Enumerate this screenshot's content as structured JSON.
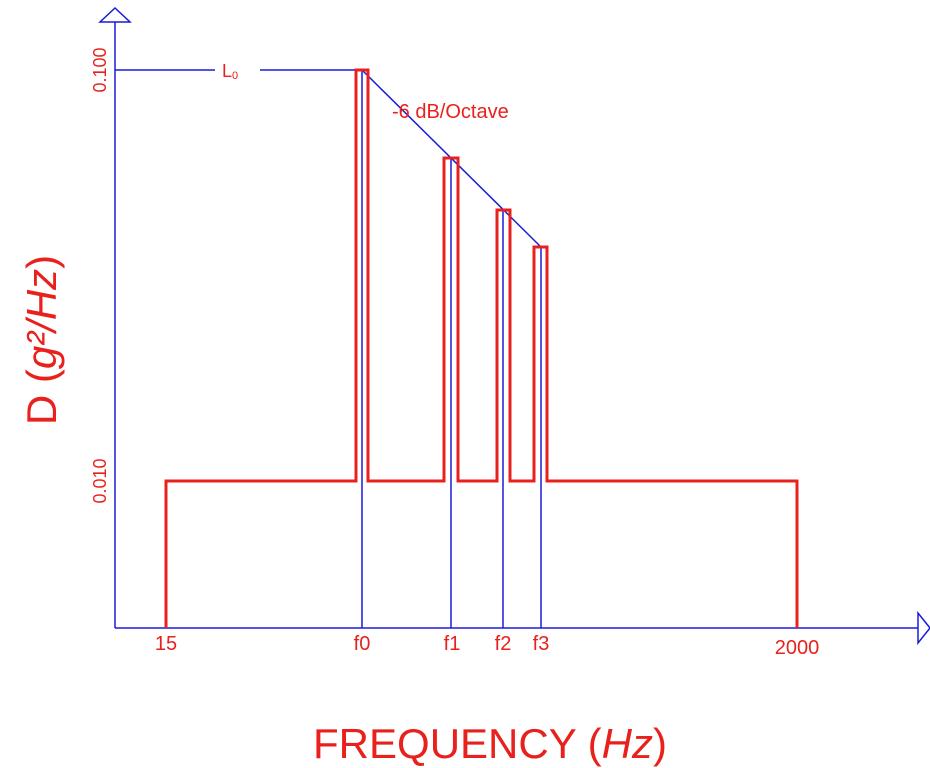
{
  "y_axis": {
    "label_start": "D (",
    "label_unit": "g²/Hz",
    "label_end": ")",
    "ticks": [
      "0.100",
      "0.010"
    ]
  },
  "x_axis": {
    "label_start": "FREQUENCY (",
    "label_unit": "Hz",
    "label_end": ")",
    "ticks": [
      "15",
      "f0",
      "f1",
      "f2",
      "f3",
      "2000"
    ]
  },
  "annotations": {
    "level": "L",
    "level_sub": "0",
    "slope": "-6 dB/Octave"
  }
}
